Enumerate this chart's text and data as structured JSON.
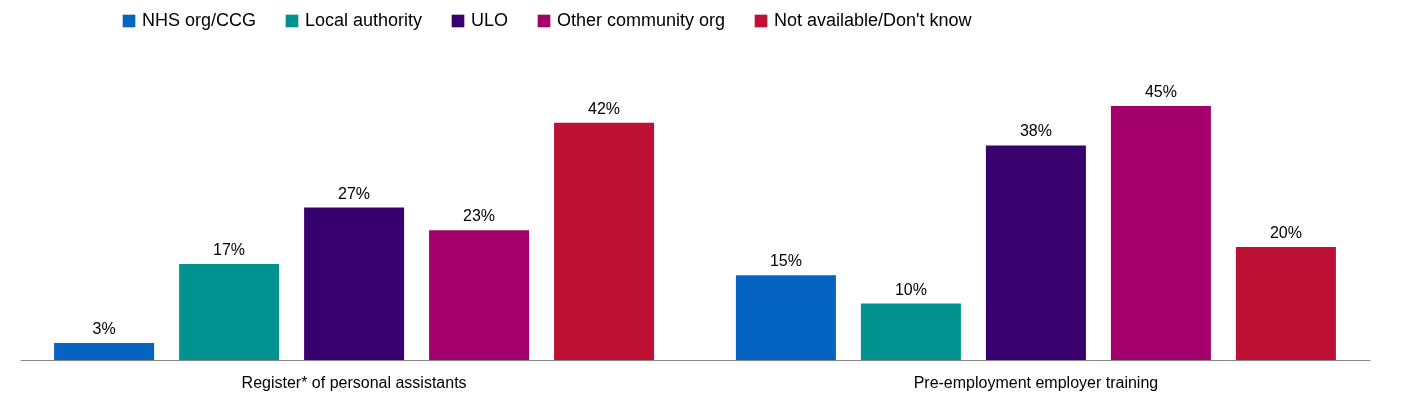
{
  "chart_data": {
    "type": "bar",
    "categories": [
      "Register* of personal assistants",
      "Pre-employment employer training"
    ],
    "series": [
      {
        "name": "NHS org/CCG",
        "color": "#0563c1",
        "values": [
          3,
          15
        ],
        "value_labels": [
          "3%",
          "15%"
        ]
      },
      {
        "name": "Local authority",
        "color": "#00928f",
        "values": [
          17,
          10
        ],
        "value_labels": [
          "17%",
          "10%"
        ]
      },
      {
        "name": "ULO",
        "color": "#37006e",
        "values": [
          27,
          38
        ],
        "value_labels": [
          "27%",
          "38%"
        ]
      },
      {
        "name": "Other community org",
        "color": "#a3006b",
        "values": [
          23,
          45
        ],
        "value_labels": [
          "23%",
          "45%"
        ]
      },
      {
        "name": "Not available/Don't know",
        "color": "#be0f34",
        "values": [
          42,
          20
        ],
        "value_labels": [
          "42%",
          "20%"
        ]
      }
    ],
    "legend": "top",
    "grid": false
  }
}
